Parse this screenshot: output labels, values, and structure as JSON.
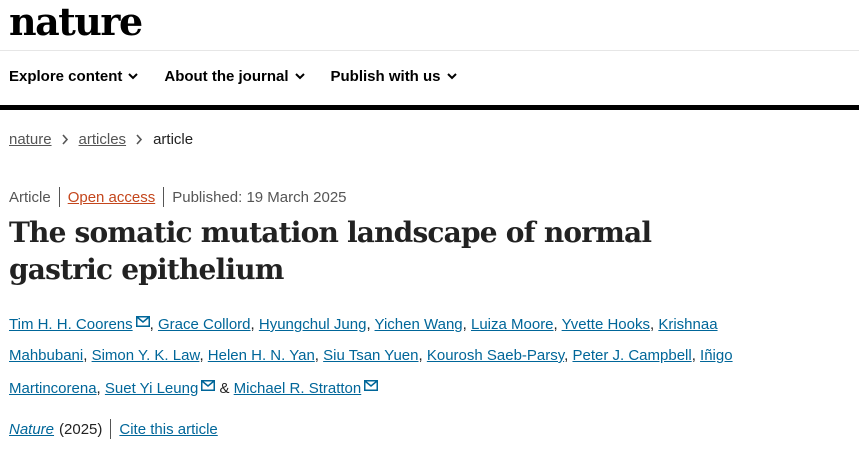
{
  "header": {
    "logo": "nature",
    "nav": [
      "Explore content",
      "About the journal",
      "Publish with us"
    ]
  },
  "breadcrumb": [
    "nature",
    "articles",
    "article"
  ],
  "article": {
    "type": "Article",
    "access": "Open access",
    "published": "Published: 19 March 2025",
    "title": "The somatic mutation landscape of normal gastric epithelium",
    "authors": [
      {
        "name": "Tim H. H. Coorens",
        "corresponding": true
      },
      {
        "name": "Grace Collord",
        "corresponding": false
      },
      {
        "name": "Hyungchul Jung",
        "corresponding": false
      },
      {
        "name": "Yichen Wang",
        "corresponding": false
      },
      {
        "name": "Luiza Moore",
        "corresponding": false
      },
      {
        "name": "Yvette Hooks",
        "corresponding": false
      },
      {
        "name": "Krishnaa Mahbubani",
        "corresponding": false
      },
      {
        "name": "Simon Y. K. Law",
        "corresponding": false
      },
      {
        "name": "Helen H. N. Yan",
        "corresponding": false
      },
      {
        "name": "Siu Tsan Yuen",
        "corresponding": false
      },
      {
        "name": "Kourosh Saeb-Parsy",
        "corresponding": false
      },
      {
        "name": "Peter J. Campbell",
        "corresponding": false
      },
      {
        "name": "Iñigo Martincorena",
        "corresponding": false
      },
      {
        "name": "Suet Yi Leung",
        "corresponding": true
      },
      {
        "name": "Michael R. Stratton",
        "corresponding": true
      }
    ],
    "author_separator": ",",
    "conjunction": "&",
    "journal": "Nature",
    "year": "(2025)",
    "cite": "Cite this article"
  }
}
